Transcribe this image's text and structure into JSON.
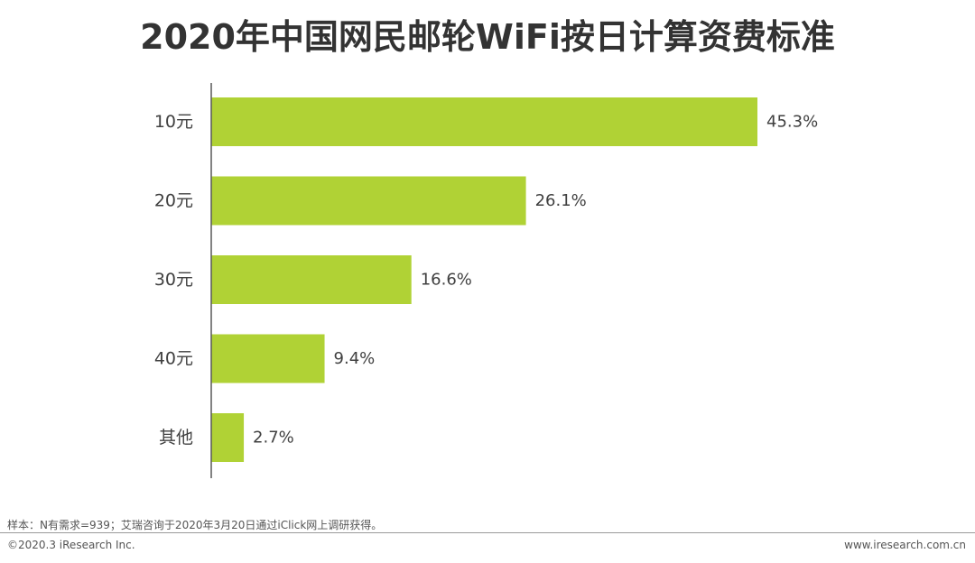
{
  "title": "2020年中国网民邮轮WiFi按日计算资费标准",
  "chart_data": {
    "type": "bar",
    "orientation": "horizontal",
    "categories": [
      "10元",
      "20元",
      "30元",
      "40元",
      "其他"
    ],
    "values": [
      45.3,
      26.1,
      16.6,
      9.4,
      2.7
    ],
    "value_labels": [
      "45.3%",
      "26.1%",
      "16.6%",
      "9.4%",
      "2.7%"
    ],
    "unit": "%",
    "bar_color": "#b0d235",
    "axis_color": "#595959",
    "grid": false,
    "legend": "none"
  },
  "footer": {
    "note": "样本：N有需求=939；艾瑞咨询于2020年3月20日通过iClick网上调研获得。",
    "copyright": "©2020.3 iResearch Inc.",
    "website": "www.iresearch.com.cn"
  }
}
